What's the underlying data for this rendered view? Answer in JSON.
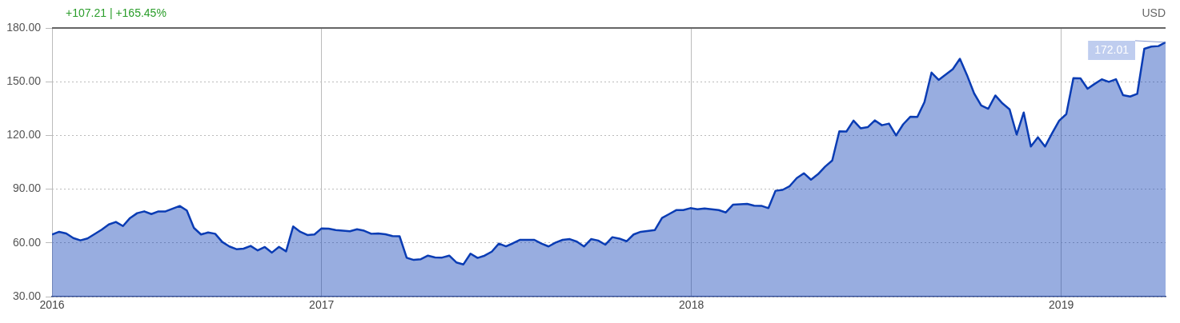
{
  "chart_data": {
    "type": "area",
    "subtitle": "+107.21 | +165.45%",
    "annotations": [
      "USD",
      {
        "text": "172.01",
        "x": "2019-04-14",
        "y": 172.01
      }
    ],
    "x": [
      "2016-04-10",
      "2016-04-17",
      "2016-04-24",
      "2016-05-01",
      "2016-05-08",
      "2016-05-15",
      "2016-05-29",
      "2016-06-05",
      "2016-06-12",
      "2016-06-19",
      "2016-06-26",
      "2016-07-03",
      "2016-07-10",
      "2016-07-17",
      "2016-07-24",
      "2016-07-31",
      "2016-08-14",
      "2016-08-21",
      "2016-08-28",
      "2016-09-04",
      "2016-09-11",
      "2016-09-18",
      "2016-09-25",
      "2016-10-02",
      "2016-10-09",
      "2016-10-16",
      "2016-10-23",
      "2016-10-30",
      "2016-11-06",
      "2016-11-13",
      "2016-11-20",
      "2016-11-27",
      "2016-12-04",
      "2016-12-11",
      "2016-12-18",
      "2016-12-25",
      "2017-01-01",
      "2017-01-08",
      "2017-01-15",
      "2017-01-29",
      "2017-02-05",
      "2017-02-12",
      "2017-02-19",
      "2017-02-26",
      "2017-03-05",
      "2017-03-12",
      "2017-03-19",
      "2017-03-26",
      "2017-04-02",
      "2017-04-09",
      "2017-04-16",
      "2017-04-23",
      "2017-04-30",
      "2017-05-07",
      "2017-05-14",
      "2017-05-21",
      "2017-05-28",
      "2017-06-04",
      "2017-06-11",
      "2017-06-18",
      "2017-06-25",
      "2017-07-02",
      "2017-07-09",
      "2017-07-16",
      "2017-07-30",
      "2017-08-06",
      "2017-08-13",
      "2017-08-20",
      "2017-08-27",
      "2017-09-03",
      "2017-09-10",
      "2017-09-17",
      "2017-09-24",
      "2017-10-01",
      "2017-10-08",
      "2017-10-15",
      "2017-10-22",
      "2017-10-29",
      "2017-11-05",
      "2017-11-12",
      "2017-11-26",
      "2017-12-03",
      "2017-12-10",
      "2017-12-17",
      "2017-12-24",
      "2017-12-31",
      "2018-01-07",
      "2018-01-14",
      "2018-01-28",
      "2018-02-04",
      "2018-02-11",
      "2018-02-25",
      "2018-03-04",
      "2018-03-11",
      "2018-03-18",
      "2018-03-25",
      "2018-04-01",
      "2018-04-08",
      "2018-04-15",
      "2018-04-22",
      "2018-04-29",
      "2018-05-06",
      "2018-05-13",
      "2018-05-20",
      "2018-05-27",
      "2018-06-03",
      "2018-06-10",
      "2018-06-17",
      "2018-06-24",
      "2018-07-01",
      "2018-07-08",
      "2018-07-15",
      "2018-07-22",
      "2018-07-29",
      "2018-08-05",
      "2018-08-12",
      "2018-08-19",
      "2018-08-26",
      "2018-09-02",
      "2018-09-09",
      "2018-09-16",
      "2018-09-23",
      "2018-09-30",
      "2018-10-07",
      "2018-10-14",
      "2018-10-21",
      "2018-10-28",
      "2018-11-04",
      "2018-11-11",
      "2018-11-18",
      "2018-11-25",
      "2018-12-02",
      "2018-12-09",
      "2018-12-16",
      "2018-12-23",
      "2018-12-30",
      "2019-01-06",
      "2019-01-13",
      "2019-01-20",
      "2019-01-27",
      "2019-02-03",
      "2019-02-10",
      "2019-02-17",
      "2019-02-24",
      "2019-03-03",
      "2019-03-10",
      "2019-03-17",
      "2019-03-24",
      "2019-03-31",
      "2019-04-07",
      "2019-04-14"
    ],
    "series": [
      {
        "color": "#0a3cb4",
        "values": [
          64.7,
          66.2,
          65.3,
          62.7,
          61.4,
          62.5,
          67.4,
          70.3,
          71.7,
          69.4,
          73.9,
          76.6,
          77.6,
          76.1,
          77.6,
          77.6,
          80.6,
          78.1,
          68.4,
          64.7,
          65.8,
          65.1,
          60.5,
          58.0,
          56.5,
          56.8,
          58.3,
          55.8,
          57.7,
          54.6,
          57.8,
          55.3,
          69.2,
          66.2,
          64.4,
          64.7,
          68.1,
          67.9,
          67.2,
          66.5,
          67.6,
          66.8,
          65.1,
          65.3,
          64.8,
          63.8,
          63.7,
          51.7,
          50.5,
          50.9,
          52.9,
          51.9,
          51.8,
          52.9,
          49.1,
          48.0,
          54.0,
          51.6,
          52.9,
          55.1,
          59.6,
          58.1,
          59.8,
          61.7,
          61.7,
          59.6,
          58.0,
          60.2,
          61.7,
          62.1,
          60.7,
          58.0,
          62.1,
          61.3,
          59.0,
          63.2,
          62.4,
          60.9,
          64.7,
          66.2,
          67.2,
          73.9,
          76.1,
          78.3,
          78.3,
          79.4,
          78.8,
          79.2,
          78.3,
          77.0,
          81.3,
          81.8,
          80.8,
          80.7,
          79.4,
          89.1,
          89.6,
          91.7,
          96.2,
          98.9,
          95.3,
          98.4,
          102.6,
          106.0,
          122.3,
          122.2,
          128.3,
          124.0,
          124.6,
          128.4,
          125.7,
          126.6,
          120.0,
          126.2,
          130.4,
          130.3,
          138.6,
          155.1,
          151.0,
          154.0,
          157.0,
          162.8,
          153.7,
          143.5,
          136.8,
          134.9,
          142.3,
          137.9,
          134.6,
          120.5,
          132.8,
          113.8,
          119.0,
          113.8,
          121.2,
          128.3,
          131.9,
          152.0,
          151.9,
          146.1,
          148.8,
          151.3,
          149.9,
          151.4,
          142.5,
          141.7,
          143.2,
          168.4,
          169.6,
          169.9,
          172.01
        ]
      }
    ],
    "xlim": [
      "2016-04-10",
      "2019-04-14"
    ],
    "xticks": [
      {
        "value": "2016-04-10",
        "label": "2016"
      },
      "2017",
      "2018",
      "2019"
    ],
    "ylim": [
      30,
      180
    ],
    "yticks": [
      {
        "value": 30,
        "label": "30.00"
      },
      {
        "value": 60,
        "label": "60.00"
      },
      {
        "value": 90,
        "label": "90.00"
      },
      {
        "value": 120,
        "label": "120.00"
      },
      {
        "value": 150,
        "label": "150.00"
      },
      {
        "value": 180,
        "label": "180.00"
      }
    ],
    "grid": true
  }
}
